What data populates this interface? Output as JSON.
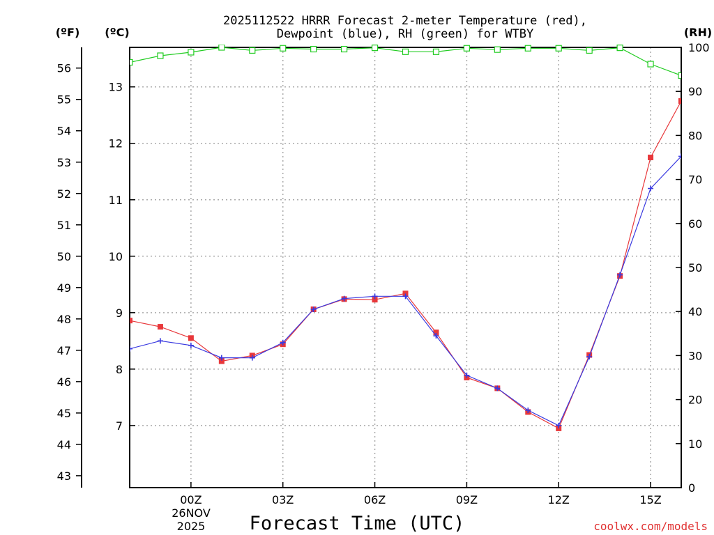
{
  "chart_data": {
    "type": "line",
    "title_line1": "2025112522 HRRR Forecast 2-meter Temperature (red),",
    "title_line2": "Dewpoint (blue), RH (green) for WTBY",
    "unit_f": "(ºF)",
    "unit_c": "(ºC)",
    "unit_rh": "(RH)",
    "xlabel": "Forecast Time (UTC)",
    "date_label_1": "26NOV",
    "date_label_2": "2025",
    "credit": "coolwx.com/models",
    "x_range_hours": [
      -2,
      16
    ],
    "c_range": [
      5.9,
      13.7
    ],
    "rh_range": [
      0,
      100
    ],
    "f_ticks": [
      "43",
      "44",
      "45",
      "46",
      "47",
      "48",
      "49",
      "50",
      "51",
      "52",
      "53",
      "54",
      "55",
      "56"
    ],
    "c_ticks": [
      "7",
      "8",
      "9",
      "10",
      "11",
      "12",
      "13"
    ],
    "rh_ticks": [
      "0",
      "10",
      "20",
      "30",
      "40",
      "50",
      "60",
      "70",
      "80",
      "90",
      "100"
    ],
    "x_ticks": [
      {
        "hour": 0,
        "label": "00Z"
      },
      {
        "hour": 3,
        "label": "03Z"
      },
      {
        "hour": 6,
        "label": "06Z"
      },
      {
        "hour": 9,
        "label": "09Z"
      },
      {
        "hour": 12,
        "label": "12Z"
      },
      {
        "hour": 15,
        "label": "15Z"
      }
    ],
    "hours": [
      -2,
      -1,
      0,
      1,
      2,
      3,
      4,
      5,
      6,
      7,
      8,
      9,
      10,
      11,
      12,
      13,
      14,
      15,
      16
    ],
    "series": [
      {
        "name": "Temperature",
        "unit": "C",
        "color": "#e8383b",
        "values": [
          8.86,
          8.75,
          8.55,
          8.14,
          8.24,
          8.44,
          9.06,
          9.24,
          9.23,
          9.34,
          8.65,
          7.85,
          7.66,
          7.24,
          6.95,
          8.25,
          9.65,
          11.75,
          12.75
        ]
      },
      {
        "name": "Dewpoint",
        "unit": "C",
        "color": "#3a3ae0",
        "values": [
          8.36,
          8.5,
          8.42,
          8.2,
          8.2,
          8.47,
          9.06,
          9.25,
          9.29,
          9.29,
          8.59,
          7.89,
          7.66,
          7.27,
          7.0,
          8.22,
          9.67,
          11.2,
          11.77
        ]
      },
      {
        "name": "RH",
        "unit": "%",
        "color": "#22cc22",
        "values": [
          96.6,
          98.1,
          98.9,
          100,
          99.3,
          99.8,
          99.6,
          99.6,
          99.9,
          99.0,
          99.0,
          99.8,
          99.5,
          99.8,
          99.8,
          99.3,
          99.9,
          96.2,
          93.6
        ]
      }
    ]
  }
}
